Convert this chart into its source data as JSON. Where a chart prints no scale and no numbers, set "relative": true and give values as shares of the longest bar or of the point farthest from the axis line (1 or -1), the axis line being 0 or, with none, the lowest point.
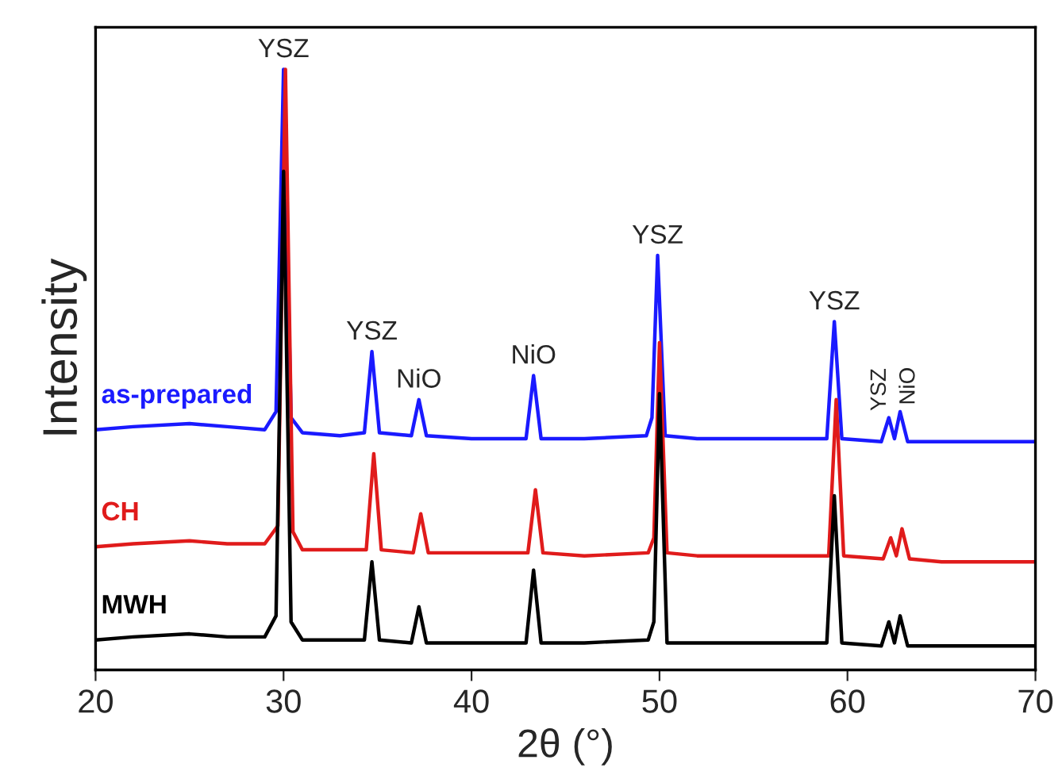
{
  "chart_data": {
    "type": "line",
    "relative": true,
    "xlabel": "2θ (°)",
    "ylabel": "Intensity",
    "xlim": [
      20,
      70
    ],
    "xticks": [
      20,
      30,
      40,
      50,
      60,
      70
    ],
    "grid": false,
    "legend": false,
    "series": [
      {
        "name": "as-prepared",
        "color": "#1a1aff",
        "x": [
          20,
          22,
          25,
          27,
          29,
          29.6,
          30.0,
          30.4,
          31,
          33,
          34.3,
          34.7,
          35.1,
          36.8,
          37.2,
          37.6,
          40,
          42.9,
          43.3,
          43.7,
          46,
          49.3,
          49.6,
          49.9,
          50.3,
          52,
          55,
          58.9,
          59.3,
          59.7,
          61.8,
          62.2,
          62.5,
          62.8,
          63.2,
          65,
          70
        ],
        "values": [
          0.4,
          0.405,
          0.41,
          0.405,
          0.4,
          0.43,
          1.0,
          0.42,
          0.395,
          0.39,
          0.395,
          0.53,
          0.395,
          0.39,
          0.45,
          0.39,
          0.385,
          0.385,
          0.49,
          0.385,
          0.385,
          0.39,
          0.42,
          0.69,
          0.39,
          0.385,
          0.385,
          0.385,
          0.58,
          0.385,
          0.38,
          0.42,
          0.385,
          0.43,
          0.38,
          0.38,
          0.38
        ]
      },
      {
        "name": "CH",
        "color": "#e01b1b",
        "x": [
          20,
          22,
          25,
          27,
          29,
          29.7,
          30.1,
          30.5,
          31,
          33,
          34.4,
          34.8,
          35.2,
          36.9,
          37.3,
          37.7,
          40,
          43.0,
          43.4,
          43.8,
          46,
          49.4,
          49.7,
          50.0,
          50.4,
          52,
          55,
          59.0,
          59.4,
          59.8,
          61.9,
          62.3,
          62.6,
          62.9,
          63.3,
          65,
          70
        ],
        "values": [
          0.205,
          0.21,
          0.215,
          0.21,
          0.21,
          0.24,
          1.0,
          0.23,
          0.2,
          0.2,
          0.2,
          0.36,
          0.2,
          0.195,
          0.26,
          0.195,
          0.195,
          0.195,
          0.3,
          0.195,
          0.19,
          0.195,
          0.22,
          0.545,
          0.195,
          0.19,
          0.19,
          0.19,
          0.45,
          0.19,
          0.185,
          0.22,
          0.19,
          0.235,
          0.185,
          0.18,
          0.18
        ]
      },
      {
        "name": "MWH",
        "color": "#000000",
        "x": [
          20,
          22,
          25,
          27,
          29,
          29.6,
          30.0,
          30.4,
          31,
          33,
          34.3,
          34.7,
          35.1,
          36.8,
          37.2,
          37.6,
          40,
          42.9,
          43.3,
          43.7,
          46,
          49.4,
          49.7,
          50.0,
          50.4,
          52,
          55,
          58.9,
          59.3,
          59.7,
          61.8,
          62.2,
          62.5,
          62.8,
          63.2,
          65,
          70
        ],
        "values": [
          0.05,
          0.055,
          0.06,
          0.055,
          0.055,
          0.09,
          0.83,
          0.08,
          0.05,
          0.05,
          0.05,
          0.18,
          0.05,
          0.045,
          0.105,
          0.045,
          0.045,
          0.045,
          0.166,
          0.045,
          0.045,
          0.05,
          0.08,
          0.46,
          0.045,
          0.045,
          0.045,
          0.045,
          0.29,
          0.045,
          0.04,
          0.08,
          0.045,
          0.09,
          0.04,
          0.04,
          0.04
        ]
      }
    ],
    "annotations": [
      {
        "text": "YSZ",
        "x": 30.0,
        "y": 1.0
      },
      {
        "text": "YSZ",
        "x": 34.7,
        "y": 0.53
      },
      {
        "text": "NiO",
        "x": 37.2,
        "y": 0.45
      },
      {
        "text": "NiO",
        "x": 43.3,
        "y": 0.49
      },
      {
        "text": "YSZ",
        "x": 49.9,
        "y": 0.69
      },
      {
        "text": "YSZ",
        "x": 59.3,
        "y": 0.58
      },
      {
        "text": "YSZ",
        "x": 62.2,
        "y": 0.42
      },
      {
        "text": "NiO",
        "x": 62.8,
        "y": 0.43
      }
    ]
  }
}
